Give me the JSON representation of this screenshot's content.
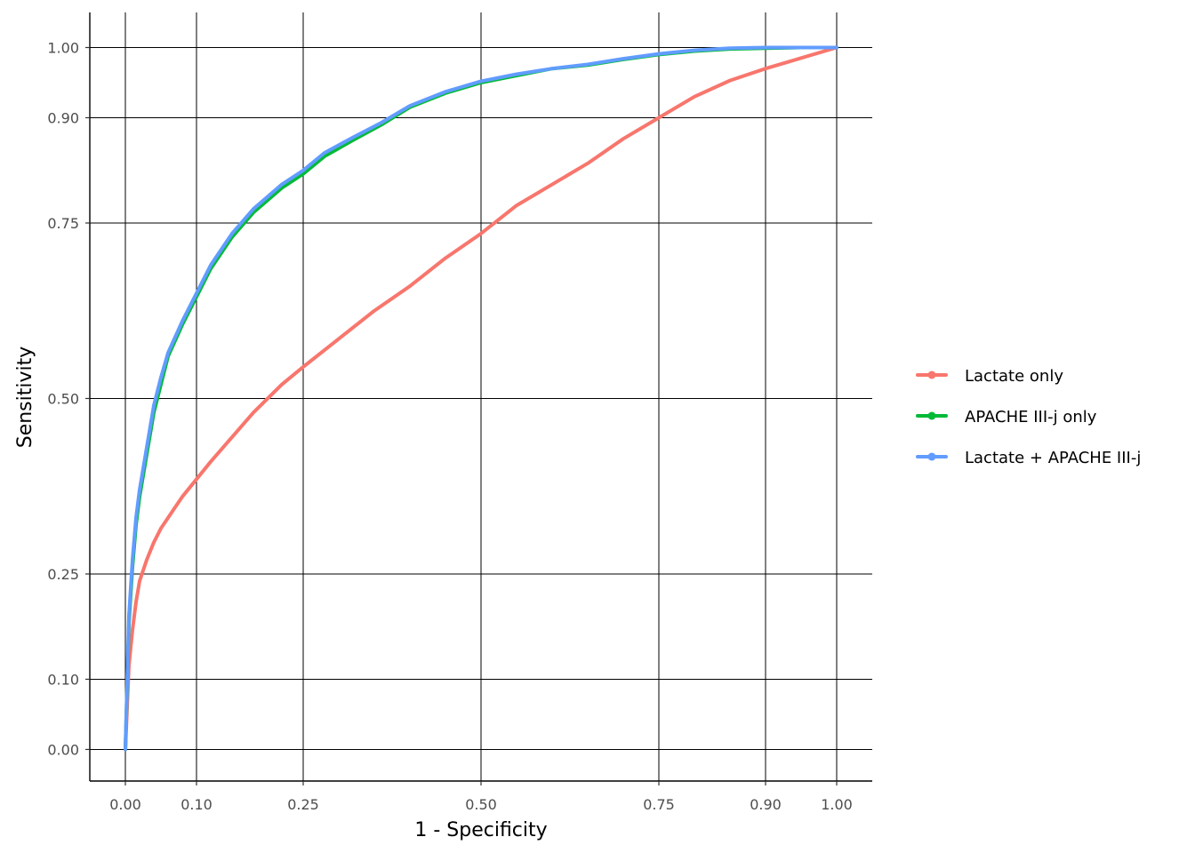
{
  "chart_data": {
    "type": "line",
    "xlabel": "1 - Specificity",
    "ylabel": "Sensitivity",
    "xlim": [
      -0.05,
      1.05
    ],
    "ylim": [
      -0.045,
      1.05
    ],
    "x_ticks": [
      0.0,
      0.1,
      0.25,
      0.5,
      0.75,
      0.9,
      1.0
    ],
    "x_tick_labels": [
      "0.00",
      "0.10",
      "0.25",
      "0.50",
      "0.75",
      "0.90",
      "1.00"
    ],
    "y_ticks": [
      0.0,
      0.1,
      0.25,
      0.5,
      0.75,
      0.9,
      1.0
    ],
    "y_tick_labels": [
      "0.00",
      "0.10",
      "0.25",
      "0.50",
      "0.75",
      "0.90",
      "1.00"
    ],
    "grid": true,
    "legend_position": "right",
    "series": [
      {
        "name": "Lactate only",
        "color": "#f8766d",
        "x": [
          0.0,
          0.005,
          0.01,
          0.015,
          0.02,
          0.03,
          0.04,
          0.05,
          0.06,
          0.07,
          0.08,
          0.1,
          0.12,
          0.15,
          0.18,
          0.22,
          0.25,
          0.3,
          0.35,
          0.4,
          0.45,
          0.5,
          0.55,
          0.6,
          0.65,
          0.7,
          0.75,
          0.8,
          0.85,
          0.9,
          0.95,
          1.0
        ],
        "y": [
          0.0,
          0.12,
          0.17,
          0.21,
          0.24,
          0.27,
          0.295,
          0.315,
          0.33,
          0.345,
          0.36,
          0.385,
          0.41,
          0.445,
          0.48,
          0.52,
          0.545,
          0.585,
          0.625,
          0.66,
          0.7,
          0.735,
          0.775,
          0.805,
          0.835,
          0.87,
          0.9,
          0.93,
          0.953,
          0.97,
          0.985,
          1.0
        ]
      },
      {
        "name": "APACHE III-j only",
        "color": "#00ba38",
        "x": [
          0.0,
          0.005,
          0.01,
          0.015,
          0.02,
          0.03,
          0.04,
          0.05,
          0.06,
          0.08,
          0.1,
          0.12,
          0.15,
          0.18,
          0.22,
          0.25,
          0.28,
          0.32,
          0.36,
          0.4,
          0.45,
          0.5,
          0.55,
          0.6,
          0.65,
          0.7,
          0.75,
          0.8,
          0.85,
          0.9,
          0.95,
          1.0
        ],
        "y": [
          0.0,
          0.18,
          0.26,
          0.32,
          0.36,
          0.42,
          0.48,
          0.52,
          0.56,
          0.605,
          0.645,
          0.685,
          0.73,
          0.765,
          0.8,
          0.82,
          0.845,
          0.868,
          0.89,
          0.915,
          0.935,
          0.95,
          0.96,
          0.97,
          0.975,
          0.983,
          0.99,
          0.995,
          0.998,
          0.999,
          1.0,
          1.0
        ]
      },
      {
        "name": "Lactate + APACHE III-j",
        "color": "#619cff",
        "x": [
          0.0,
          0.005,
          0.01,
          0.015,
          0.02,
          0.03,
          0.04,
          0.05,
          0.06,
          0.08,
          0.1,
          0.12,
          0.15,
          0.18,
          0.22,
          0.25,
          0.28,
          0.32,
          0.36,
          0.4,
          0.45,
          0.5,
          0.55,
          0.6,
          0.65,
          0.7,
          0.75,
          0.8,
          0.85,
          0.9,
          0.95,
          1.0
        ],
        "y": [
          0.0,
          0.19,
          0.27,
          0.33,
          0.37,
          0.43,
          0.49,
          0.53,
          0.565,
          0.61,
          0.65,
          0.69,
          0.735,
          0.77,
          0.805,
          0.825,
          0.85,
          0.872,
          0.893,
          0.917,
          0.937,
          0.952,
          0.962,
          0.97,
          0.976,
          0.984,
          0.991,
          0.996,
          0.999,
          1.0,
          1.0,
          1.0
        ]
      }
    ]
  }
}
